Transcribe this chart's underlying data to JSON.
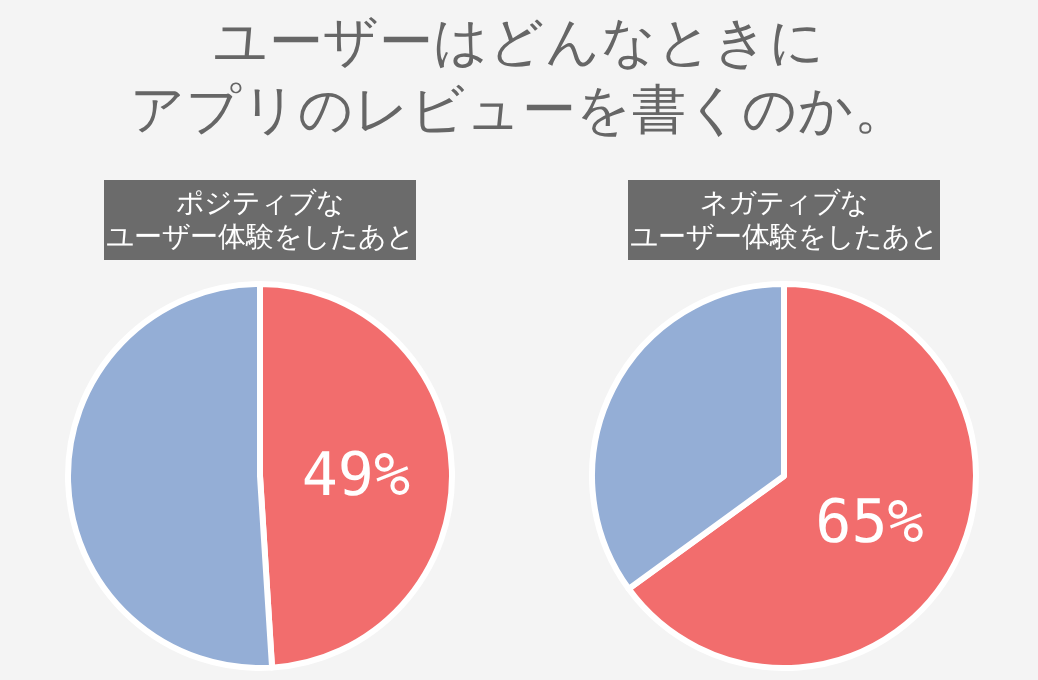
{
  "chart_data": [
    {
      "type": "pie",
      "title": "ユーザーはどんなときに",
      "subtitle": "アプリのレビューを書くのか。",
      "annotations": [
        "ポジティブな",
        "ユーザー体験をしたあと"
      ],
      "categories": [
        null,
        null
      ],
      "values": [
        49,
        51
      ],
      "colors": [
        "#f26d6d",
        "#94aed6"
      ],
      "value_labels": [
        "49%",
        null
      ]
    },
    {
      "type": "pie",
      "annotations": [
        "ネガティブな",
        "ユーザー体験をしたあと"
      ],
      "categories": [
        null,
        null
      ],
      "values": [
        65,
        35
      ],
      "colors": [
        "#f26d6d",
        "#94aed6"
      ],
      "value_labels": [
        "65%",
        null
      ]
    }
  ]
}
